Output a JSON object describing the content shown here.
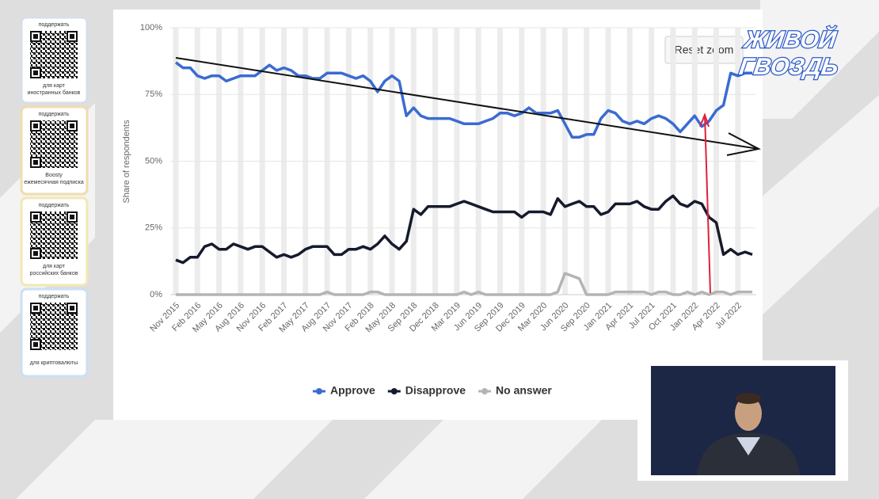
{
  "chart_data": {
    "type": "line",
    "y_axis_label": "Share of respondents",
    "categories": [
      "Nov 2015",
      null,
      null,
      "Feb 2016",
      null,
      null,
      "May 2016",
      null,
      null,
      "Aug 2016",
      null,
      null,
      "Nov 2016",
      null,
      null,
      "Feb 2017",
      null,
      null,
      "May 2017",
      null,
      null,
      "Aug 2017",
      null,
      null,
      "Nov 2017",
      null,
      null,
      "Feb 2018",
      null,
      null,
      "May 2018",
      null,
      null,
      "Sep 2018",
      null,
      null,
      "Dec 2018",
      null,
      null,
      "Mar 2019",
      null,
      null,
      "Jun 2019",
      null,
      null,
      "Sep 2019",
      null,
      null,
      "Dec 2019",
      null,
      null,
      "Mar 2020",
      null,
      null,
      "Jun 2020",
      null,
      null,
      "Sep 2020",
      null,
      null,
      "Jan 2021",
      null,
      null,
      "Apr 2021",
      null,
      null,
      "Jul 2021",
      null,
      null,
      "Oct 2021",
      null,
      null,
      "Jan 2022",
      null,
      null,
      "Apr 2022",
      null,
      null,
      "Jul 2022",
      null,
      null
    ],
    "series": [
      {
        "name": "Approve",
        "color": "#3a6bd1",
        "values": [
          87,
          85,
          85,
          82,
          81,
          82,
          82,
          80,
          81,
          82,
          82,
          82,
          84,
          86,
          84,
          85,
          84,
          82,
          82,
          81,
          81,
          83,
          83,
          83,
          82,
          81,
          82,
          80,
          76,
          80,
          82,
          80,
          67,
          70,
          67,
          66,
          66,
          66,
          66,
          65,
          64,
          64,
          64,
          65,
          66,
          68,
          68,
          67,
          68,
          70,
          68,
          68,
          68,
          69,
          64,
          59,
          59,
          60,
          60,
          66,
          69,
          68,
          65,
          64,
          65,
          64,
          66,
          67,
          66,
          64,
          61,
          64,
          67,
          63,
          65,
          69,
          71,
          83,
          82,
          83,
          83
        ]
      },
      {
        "name": "Disapprove",
        "color": "#161a2c",
        "values": [
          13,
          12,
          14,
          14,
          18,
          19,
          17,
          17,
          19,
          18,
          17,
          18,
          18,
          16,
          14,
          15,
          14,
          15,
          17,
          18,
          18,
          18,
          15,
          15,
          17,
          17,
          18,
          17,
          19,
          22,
          19,
          17,
          20,
          32,
          30,
          33,
          33,
          33,
          33,
          34,
          35,
          34,
          33,
          32,
          31,
          31,
          31,
          31,
          29,
          31,
          31,
          31,
          30,
          36,
          33,
          34,
          35,
          33,
          33,
          30,
          31,
          34,
          34,
          34,
          35,
          33,
          32,
          32,
          35,
          37,
          34,
          33,
          35,
          34,
          29,
          27,
          15,
          17,
          15,
          16,
          15
        ]
      },
      {
        "name": "No answer",
        "color": "#b4b4b4",
        "values": [
          0,
          0,
          0,
          0,
          0,
          0,
          0,
          0,
          0,
          0,
          0,
          0,
          0,
          0,
          0,
          0,
          0,
          0,
          0,
          0,
          0,
          1,
          0,
          0,
          0,
          0,
          0,
          1,
          1,
          0,
          0,
          0,
          0,
          0,
          0,
          0,
          0,
          0,
          0,
          0,
          1,
          0,
          1,
          0,
          0,
          0,
          0,
          0,
          0,
          0,
          0,
          0,
          0,
          1,
          8,
          7,
          6,
          0,
          0,
          0,
          0,
          1,
          1,
          1,
          1,
          1,
          0,
          1,
          1,
          0,
          0,
          1,
          0,
          1,
          0,
          1,
          1,
          0,
          1,
          1,
          1
        ]
      }
    ],
    "ylim": [
      0,
      100
    ],
    "yticks": [
      {
        "value": 0,
        "label": "0%"
      },
      {
        "value": 25,
        "label": "25%"
      },
      {
        "value": 50,
        "label": "50%"
      },
      {
        "value": 75,
        "label": "75%"
      },
      {
        "value": 100,
        "label": "100%"
      }
    ],
    "grid": true,
    "legend": "bottom",
    "reset_zoom": "Reset zoom"
  },
  "sidebar": {
    "cards": [
      {
        "title": "поддержать",
        "caption": [
          "для карт",
          "иностранных банков"
        ]
      },
      {
        "title": "поддержать",
        "caption": [
          "Boosty",
          "ежемесячная подписка"
        ]
      },
      {
        "title": "поддержать",
        "caption": [
          "для карт",
          "российских банков"
        ]
      },
      {
        "title": "поддержать",
        "caption": [
          "для криптовалюты"
        ]
      }
    ]
  },
  "logo": [
    "ЖИВОЙ",
    "ГВОЗДЬ"
  ]
}
